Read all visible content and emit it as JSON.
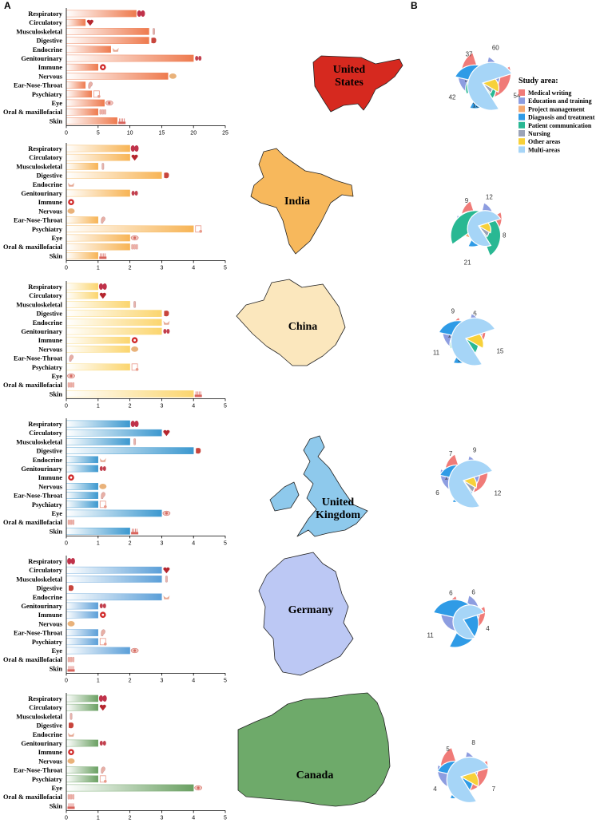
{
  "panel_labels": {
    "a": "A",
    "b": "B"
  },
  "categories": [
    "Respiratory",
    "Circulatory",
    "Musculoskeletal",
    "Digestive",
    "Endocrine",
    "Genitourinary",
    "Immune",
    "Nervous",
    "Ear-Nose-Throat",
    "Psychiatry",
    "Eye",
    "Oral & maxillofacial",
    "Skin"
  ],
  "legend": {
    "title": "Study area:",
    "items": [
      {
        "name": "Medical writing",
        "color": "#f07b78"
      },
      {
        "name": "Education and training",
        "color": "#8d9de0"
      },
      {
        "name": "Project management",
        "color": "#f5aa72"
      },
      {
        "name": "Diagnosis and treatment",
        "color": "#2f9be6"
      },
      {
        "name": "Patient communication",
        "color": "#29b893"
      },
      {
        "name": "Nursing",
        "color": "#9ba3b7"
      },
      {
        "name": "Other areas",
        "color": "#f7d13a"
      },
      {
        "name": "Multi-areas",
        "color": "#a6d5f7"
      }
    ]
  },
  "countries": [
    {
      "name": "United States",
      "name_lines": [
        "United",
        "States"
      ],
      "bar_color": "#ee7a4e",
      "map_color": "#d6291f",
      "xmax": 25,
      "ticks": [
        0,
        5,
        10,
        15,
        20,
        25
      ],
      "values": [
        11,
        3,
        13,
        13,
        7,
        20,
        5,
        16,
        3,
        4,
        6,
        5,
        8
      ],
      "petals": [
        60,
        37,
        3,
        42,
        13,
        2,
        10,
        54
      ]
    },
    {
      "name": "India",
      "name_lines": [
        "India"
      ],
      "bar_color": "#f7b455",
      "map_color": "#f7b85c",
      "xmax": 5,
      "ticks": [
        0,
        1,
        2,
        3,
        4,
        5
      ],
      "values": [
        2,
        2,
        1,
        3,
        0,
        2,
        0,
        0,
        1,
        4,
        2,
        2,
        1
      ],
      "petals": [
        12,
        9,
        3,
        8,
        21,
        1,
        1,
        8
      ]
    },
    {
      "name": "China",
      "name_lines": [
        "China"
      ],
      "bar_color": "#fbd56e",
      "map_color": "#fbe7bd",
      "xmax": 5,
      "ticks": [
        0,
        1,
        2,
        3,
        4,
        5
      ],
      "values": [
        1,
        1,
        2,
        3,
        3,
        3,
        2,
        2,
        0,
        2,
        0,
        0,
        4
      ],
      "petals": [
        6,
        9,
        1,
        11,
        3,
        0,
        4,
        15
      ]
    },
    {
      "name": "United Kingdom",
      "name_lines": [
        "United",
        "Kingdom"
      ],
      "bar_color": "#3c98cf",
      "map_color": "#8ec9ec",
      "xmax": 5,
      "ticks": [
        0,
        1,
        2,
        3,
        4,
        5
      ],
      "values": [
        2,
        3,
        2,
        4,
        1,
        1,
        0,
        1,
        1,
        1,
        3,
        0,
        2
      ],
      "petals": [
        9,
        7,
        1,
        6,
        0,
        1,
        1,
        12
      ]
    },
    {
      "name": "Germany",
      "name_lines": [
        "Germany"
      ],
      "bar_color": "#5b9fd8",
      "map_color": "#bcc8f4",
      "xmax": 5,
      "ticks": [
        0,
        1,
        2,
        3,
        4,
        5
      ],
      "values": [
        0,
        3,
        3,
        0,
        3,
        1,
        1,
        0,
        1,
        1,
        2,
        0,
        0
      ],
      "petals": [
        6,
        6,
        0,
        11,
        0,
        0,
        0,
        4
      ]
    },
    {
      "name": "Canada",
      "name_lines": [
        "Canada"
      ],
      "bar_color": "#6aa062",
      "map_color": "#6eaa6a",
      "xmax": 5,
      "ticks": [
        0,
        1,
        2,
        3,
        4,
        5
      ],
      "values": [
        1,
        1,
        0,
        0,
        0,
        1,
        0,
        0,
        1,
        1,
        4,
        0,
        0
      ],
      "petals": [
        8,
        5,
        0,
        4,
        0,
        0,
        2,
        7
      ]
    }
  ],
  "chart_data": [
    {
      "type": "bar",
      "title": "United States",
      "categories": [
        "Respiratory",
        "Circulatory",
        "Musculoskeletal",
        "Digestive",
        "Endocrine",
        "Genitourinary",
        "Immune",
        "Nervous",
        "Ear-Nose-Throat",
        "Psychiatry",
        "Eye",
        "Oral & maxillofacial",
        "Skin"
      ],
      "values": [
        11,
        3,
        13,
        13,
        7,
        20,
        5,
        16,
        3,
        4,
        6,
        5,
        8
      ],
      "xlim": [
        0,
        25
      ]
    },
    {
      "type": "bar",
      "title": "India",
      "categories": [
        "Respiratory",
        "Circulatory",
        "Musculoskeletal",
        "Digestive",
        "Endocrine",
        "Genitourinary",
        "Immune",
        "Nervous",
        "Ear-Nose-Throat",
        "Psychiatry",
        "Eye",
        "Oral & maxillofacial",
        "Skin"
      ],
      "values": [
        2,
        2,
        1,
        3,
        0,
        2,
        0,
        0,
        1,
        4,
        2,
        2,
        1
      ],
      "xlim": [
        0,
        5
      ]
    },
    {
      "type": "bar",
      "title": "China",
      "categories": [
        "Respiratory",
        "Circulatory",
        "Musculoskeletal",
        "Digestive",
        "Endocrine",
        "Genitourinary",
        "Immune",
        "Nervous",
        "Ear-Nose-Throat",
        "Psychiatry",
        "Eye",
        "Oral & maxillofacial",
        "Skin"
      ],
      "values": [
        1,
        1,
        2,
        3,
        3,
        3,
        2,
        2,
        0,
        2,
        0,
        0,
        4
      ],
      "xlim": [
        0,
        5
      ]
    },
    {
      "type": "bar",
      "title": "United Kingdom",
      "categories": [
        "Respiratory",
        "Circulatory",
        "Musculoskeletal",
        "Digestive",
        "Endocrine",
        "Genitourinary",
        "Immune",
        "Nervous",
        "Ear-Nose-Throat",
        "Psychiatry",
        "Eye",
        "Oral & maxillofacial",
        "Skin"
      ],
      "values": [
        2,
        3,
        2,
        4,
        1,
        1,
        0,
        1,
        1,
        1,
        3,
        0,
        2
      ],
      "xlim": [
        0,
        5
      ]
    },
    {
      "type": "bar",
      "title": "Germany",
      "categories": [
        "Respiratory",
        "Circulatory",
        "Musculoskeletal",
        "Digestive",
        "Endocrine",
        "Genitourinary",
        "Immune",
        "Nervous",
        "Ear-Nose-Throat",
        "Psychiatry",
        "Eye",
        "Oral & maxillofacial",
        "Skin"
      ],
      "values": [
        0,
        3,
        3,
        0,
        3,
        1,
        1,
        0,
        1,
        1,
        2,
        0,
        0
      ],
      "xlim": [
        0,
        5
      ]
    },
    {
      "type": "bar",
      "title": "Canada",
      "categories": [
        "Respiratory",
        "Circulatory",
        "Musculoskeletal",
        "Digestive",
        "Endocrine",
        "Genitourinary",
        "Immune",
        "Nervous",
        "Ear-Nose-Throat",
        "Psychiatry",
        "Eye",
        "Oral & maxillofacial",
        "Skin"
      ],
      "values": [
        1,
        1,
        0,
        0,
        0,
        1,
        0,
        0,
        1,
        1,
        4,
        0,
        0
      ],
      "xlim": [
        0,
        5
      ]
    },
    {
      "type": "pie",
      "title": "United States",
      "categories": [
        "Medical writing",
        "Education and training",
        "Project management",
        "Diagnosis and treatment",
        "Patient communication",
        "Nursing",
        "Other areas",
        "Multi-areas"
      ],
      "values": [
        60,
        37,
        3,
        42,
        13,
        2,
        10,
        54
      ]
    },
    {
      "type": "pie",
      "title": "India",
      "categories": [
        "Medical writing",
        "Education and training",
        "Project management",
        "Diagnosis and treatment",
        "Patient communication",
        "Nursing",
        "Other areas",
        "Multi-areas"
      ],
      "values": [
        12,
        9,
        3,
        8,
        21,
        1,
        1,
        8
      ]
    },
    {
      "type": "pie",
      "title": "China",
      "categories": [
        "Medical writing",
        "Education and training",
        "Project management",
        "Diagnosis and treatment",
        "Patient communication",
        "Nursing",
        "Other areas",
        "Multi-areas"
      ],
      "values": [
        6,
        9,
        1,
        11,
        3,
        0,
        4,
        15
      ]
    },
    {
      "type": "pie",
      "title": "United Kingdom",
      "categories": [
        "Medical writing",
        "Education and training",
        "Project management",
        "Diagnosis and treatment",
        "Patient communication",
        "Nursing",
        "Other areas",
        "Multi-areas"
      ],
      "values": [
        9,
        7,
        1,
        6,
        0,
        1,
        1,
        12
      ]
    },
    {
      "type": "pie",
      "title": "Germany",
      "categories": [
        "Medical writing",
        "Education and training",
        "Project management",
        "Diagnosis and treatment",
        "Patient communication",
        "Nursing",
        "Other areas",
        "Multi-areas"
      ],
      "values": [
        6,
        6,
        0,
        11,
        0,
        0,
        0,
        4
      ]
    },
    {
      "type": "pie",
      "title": "Canada",
      "categories": [
        "Medical writing",
        "Education and training",
        "Project management",
        "Diagnosis and treatment",
        "Patient communication",
        "Nursing",
        "Other areas",
        "Multi-areas"
      ],
      "values": [
        8,
        5,
        0,
        4,
        0,
        0,
        2,
        7
      ]
    }
  ]
}
